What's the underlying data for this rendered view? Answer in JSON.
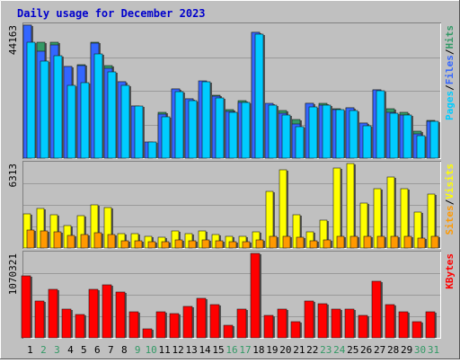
{
  "colors": {
    "background": "#c0c0c0",
    "title": "#0000cc",
    "pages": "#00ccff",
    "files": "#3366ff",
    "hits": "#339966",
    "visits": "#ffff00",
    "sites": "#ff9900",
    "kbytes": "#ff0000",
    "weekend_day": "#339966",
    "weekday": "#000000"
  },
  "chart_data": {
    "type": "bar",
    "title": "Daily usage for December 2023",
    "categories": [
      "1",
      "2",
      "3",
      "4",
      "5",
      "6",
      "7",
      "8",
      "9",
      "10",
      "11",
      "12",
      "13",
      "14",
      "15",
      "16",
      "17",
      "18",
      "19",
      "20",
      "21",
      "22",
      "23",
      "24",
      "25",
      "26",
      "27",
      "28",
      "29",
      "30",
      "31"
    ],
    "weekend_days": [
      "2",
      "3",
      "9",
      "10",
      "16",
      "17",
      "23",
      "24",
      "30",
      "31"
    ],
    "panels": [
      {
        "id": "top",
        "tick_label": "44163",
        "ylim": [
          0,
          44163
        ],
        "legend": [
          "Pages",
          "/",
          "Files",
          "/",
          "Hits"
        ],
        "series": [
          {
            "name": "Hits",
            "values": [
              44163,
              38450,
              38600,
              30350,
              30950,
              38580,
              30680,
              25300,
              17410,
              0,
              15230,
              23100,
              19750,
              22100,
              20850,
              16200,
              19000,
              41630,
              18050,
              15850,
              12980,
              18100,
              18230,
              16390,
              16650,
              11780,
              22710,
              16300,
              15310,
              9010,
              12600
            ]
          },
          {
            "name": "Files",
            "values": [
              44163,
              35400,
              37500,
              30400,
              30700,
              38250,
              29750,
              25400,
              17400,
              5400,
              14700,
              23100,
              19600,
              25800,
              20550,
              15550,
              18500,
              41630,
              18100,
              14800,
              11200,
              18150,
              17650,
              16190,
              16650,
              11780,
              22710,
              15100,
              14310,
              8000,
              12300
            ]
          },
          {
            "name": "Pages",
            "values": [
              38450,
              32150,
              33900,
              24300,
              25150,
              34750,
              28700,
              24200,
              17400,
              5400,
              13810,
              22010,
              19000,
              25300,
              20050,
              15150,
              18550,
              41050,
              17550,
              14300,
              10400,
              17100,
              17650,
              15980,
              15960,
              10780,
              22310,
              14900,
              14310,
              7500,
              12300
            ]
          }
        ]
      },
      {
        "id": "middle",
        "tick_label": "6313",
        "ylim": [
          0,
          6313
        ],
        "legend": [
          "Sites",
          "/",
          "Visits"
        ],
        "series": [
          {
            "name": "Visits",
            "values": [
              2580,
              2950,
              2510,
              1700,
              2400,
              3250,
              3040,
              1050,
              1050,
              845,
              810,
              1300,
              1050,
              1260,
              1040,
              845,
              845,
              1230,
              4260,
              5850,
              2480,
              1230,
              2050,
              5980,
              6313,
              3340,
              4400,
              5300,
              4400,
              2700,
              4000
            ]
          },
          {
            "name": "Sites",
            "values": [
              1370,
              1250,
              1230,
              950,
              1040,
              1150,
              1010,
              565,
              565,
              460,
              470,
              610,
              550,
              610,
              530,
              475,
              480,
              625,
              900,
              900,
              805,
              520,
              620,
              900,
              900,
              900,
              900,
              870,
              870,
              740,
              870
            ]
          }
        ]
      },
      {
        "id": "bottom",
        "tick_label": "1070321",
        "ylim": [
          0,
          1070321
        ],
        "legend": [
          "KBytes"
        ],
        "series": [
          {
            "name": "KBytes",
            "values": [
              780000,
              470000,
              610000,
              370000,
              300000,
              610000,
              670000,
              580000,
              330000,
              110000,
              330000,
              310000,
              400000,
              500000,
              420000,
              160000,
              360000,
              1070321,
              290000,
              370000,
              210000,
              470000,
              430000,
              370000,
              370000,
              280000,
              720000,
              420000,
              330000,
              200000,
              330000
            ]
          }
        ]
      }
    ]
  }
}
